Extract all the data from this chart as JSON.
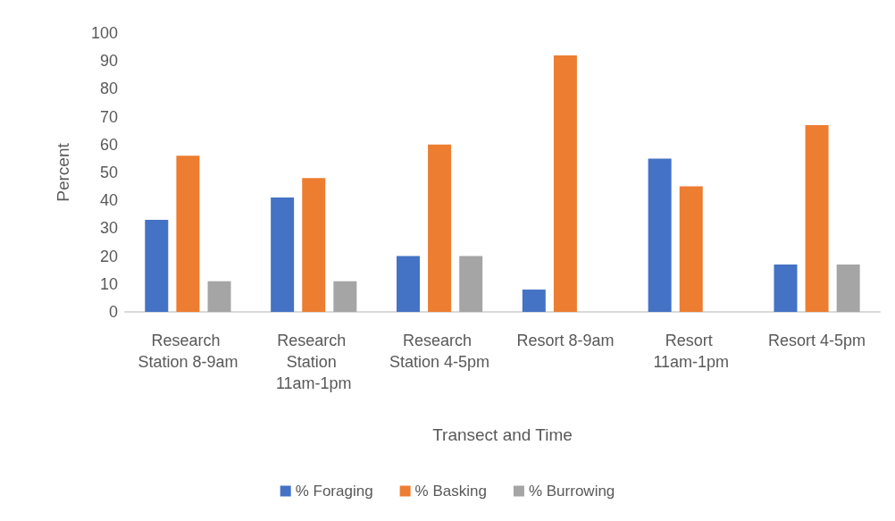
{
  "chart_data": {
    "type": "bar",
    "xlabel": "Transect and Time",
    "ylabel": "Percent",
    "categories": [
      "Research Station 8-9am",
      "Research Station 11am-1pm",
      "Research Station 4-5pm",
      "Resort 8-9am",
      "Resort 11am-1pm",
      "Resort 4-5pm"
    ],
    "series": [
      {
        "name": "% Foraging",
        "color": "#4472c4",
        "values": [
          33,
          41,
          20,
          8,
          55,
          17
        ]
      },
      {
        "name": "% Basking",
        "color": "#ed7d31",
        "values": [
          56,
          48,
          60,
          92,
          45,
          67
        ]
      },
      {
        "name": "% Burrowing",
        "color": "#a5a5a5",
        "values": [
          11,
          11,
          20,
          0,
          0,
          17
        ]
      }
    ],
    "ylim": [
      0,
      100
    ],
    "yticks": [
      0,
      10,
      20,
      30,
      40,
      50,
      60,
      70,
      80,
      90,
      100
    ],
    "grid": false,
    "legend": "bottom"
  }
}
